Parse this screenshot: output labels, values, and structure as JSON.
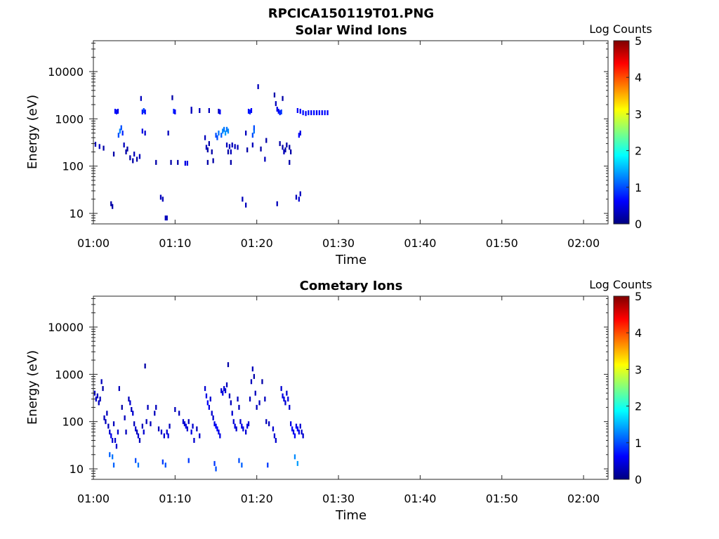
{
  "figure_title": "RPCICA150119T01.PNG",
  "colorscale": [
    "#00007f",
    "#0000ff",
    "#0080ff",
    "#00ffff",
    "#80ff80",
    "#ffff00",
    "#ff8000",
    "#ff0000",
    "#7f0000"
  ],
  "chart_data": [
    {
      "type": "heatmap",
      "title": "Solar Wind Ions",
      "xlabel": "Time",
      "ylabel": "Energy (eV)",
      "xlim": [
        "01:00",
        "02:03"
      ],
      "x_ticks": [
        "01:00",
        "01:10",
        "01:20",
        "01:30",
        "01:40",
        "01:50",
        "02:00"
      ],
      "y_scale": "log",
      "ylim": [
        6,
        45000
      ],
      "y_ticks": [
        "10",
        "100",
        "1000",
        "10000"
      ],
      "grid": false,
      "colorbar": {
        "label": "Log Counts",
        "range": [
          0,
          5
        ],
        "ticks": [
          "0",
          "1",
          "2",
          "3",
          "4",
          "5"
        ]
      },
      "points": [
        [
          "01:00:15",
          290,
          0.3
        ],
        [
          "01:00:45",
          260,
          0.3
        ],
        [
          "01:01:15",
          240,
          0.2
        ],
        [
          "01:02:10",
          16,
          0.2
        ],
        [
          "01:02:20",
          14,
          0.2
        ],
        [
          "01:02:30",
          180,
          0.2
        ],
        [
          "01:02:40",
          1450,
          0.6
        ],
        [
          "01:02:50",
          1400,
          0.7
        ],
        [
          "01:03:00",
          1450,
          0.5
        ],
        [
          "01:03:05",
          450,
          1.0
        ],
        [
          "01:03:15",
          550,
          1.3
        ],
        [
          "01:03:25",
          650,
          1.0
        ],
        [
          "01:03:35",
          500,
          0.8
        ],
        [
          "01:03:45",
          280,
          0.3
        ],
        [
          "01:04:00",
          200,
          0.2
        ],
        [
          "01:04:10",
          230,
          0.2
        ],
        [
          "01:04:30",
          150,
          0.2
        ],
        [
          "01:04:50",
          130,
          0.2
        ],
        [
          "01:05:00",
          180,
          0.3
        ],
        [
          "01:05:20",
          140,
          0.2
        ],
        [
          "01:05:40",
          160,
          0.3
        ],
        [
          "01:05:50",
          2700,
          0.3
        ],
        [
          "01:06:00",
          1400,
          0.7
        ],
        [
          "01:06:10",
          1500,
          1.0
        ],
        [
          "01:06:20",
          1400,
          0.6
        ],
        [
          "01:06:00",
          550,
          0.5
        ],
        [
          "01:06:20",
          500,
          0.4
        ],
        [
          "01:07:40",
          120,
          0.2
        ],
        [
          "01:08:15",
          22,
          0.3
        ],
        [
          "01:08:30",
          20,
          0.3
        ],
        [
          "01:08:50",
          8,
          0.3
        ],
        [
          "01:09:00",
          8,
          0.3
        ],
        [
          "01:09:10",
          500,
          0.3
        ],
        [
          "01:09:30",
          120,
          0.2
        ],
        [
          "01:09:40",
          2800,
          0.2
        ],
        [
          "01:09:50",
          1450,
          0.8
        ],
        [
          "01:10:00",
          1400,
          0.6
        ],
        [
          "01:10:20",
          120,
          0.2
        ],
        [
          "01:11:15",
          115,
          0.5
        ],
        [
          "01:11:30",
          115,
          0.5
        ],
        [
          "01:12:00",
          1450,
          0.3
        ],
        [
          "01:12:00",
          1600,
          0.3
        ],
        [
          "01:13:00",
          1500,
          0.3
        ],
        [
          "01:14:10",
          1500,
          0.3
        ],
        [
          "01:13:40",
          400,
          0.3
        ],
        [
          "01:13:50",
          250,
          0.3
        ],
        [
          "01:14:00",
          220,
          0.2
        ],
        [
          "01:14:00",
          120,
          0.2
        ],
        [
          "01:14:10",
          300,
          0.2
        ],
        [
          "01:14:30",
          200,
          0.2
        ],
        [
          "01:14:40",
          130,
          0.2
        ],
        [
          "01:15:00",
          450,
          1.0
        ],
        [
          "01:15:10",
          400,
          1.0
        ],
        [
          "01:15:20",
          500,
          1.2
        ],
        [
          "01:15:40",
          450,
          1.1
        ],
        [
          "01:15:50",
          550,
          1.3
        ],
        [
          "01:16:00",
          600,
          1.2
        ],
        [
          "01:16:10",
          500,
          1.4
        ],
        [
          "01:16:20",
          600,
          1.2
        ],
        [
          "01:16:30",
          550,
          1.3
        ],
        [
          "01:15:20",
          1450,
          0.3
        ],
        [
          "01:15:30",
          1400,
          0.6
        ],
        [
          "01:16:20",
          280,
          0.3
        ],
        [
          "01:16:40",
          260,
          0.3
        ],
        [
          "01:16:50",
          200,
          0.3
        ],
        [
          "01:17:00",
          280,
          0.3
        ],
        [
          "01:17:20",
          260,
          0.3
        ],
        [
          "01:17:40",
          250,
          0.3
        ],
        [
          "01:16:30",
          200,
          0.2
        ],
        [
          "01:16:50",
          120,
          0.2
        ],
        [
          "01:18:15",
          20,
          0.3
        ],
        [
          "01:18:40",
          15,
          0.3
        ],
        [
          "01:18:40",
          500,
          0.3
        ],
        [
          "01:18:50",
          220,
          0.2
        ],
        [
          "01:19:00",
          1450,
          0.7
        ],
        [
          "01:19:10",
          1400,
          0.8
        ],
        [
          "01:19:20",
          1500,
          0.6
        ],
        [
          "01:19:30",
          450,
          1.0
        ],
        [
          "01:19:40",
          550,
          1.2
        ],
        [
          "01:19:40",
          650,
          1.0
        ],
        [
          "01:19:30",
          280,
          0.3
        ],
        [
          "01:20:10",
          4800,
          0.3
        ],
        [
          "01:20:30",
          230,
          0.2
        ],
        [
          "01:21:00",
          140,
          0.3
        ],
        [
          "01:21:10",
          350,
          0.2
        ],
        [
          "01:22:10",
          3200,
          0.2
        ],
        [
          "01:22:20",
          2100,
          0.3
        ],
        [
          "01:22:30",
          1600,
          0.5
        ],
        [
          "01:22:40",
          1450,
          0.6
        ],
        [
          "01:22:50",
          1350,
          0.8
        ],
        [
          "01:23:00",
          1400,
          0.9
        ],
        [
          "01:23:10",
          2700,
          0.2
        ],
        [
          "01:22:30",
          16,
          0.3
        ],
        [
          "01:22:50",
          300,
          0.2
        ],
        [
          "01:23:10",
          250,
          0.2
        ],
        [
          "01:23:20",
          200,
          0.3
        ],
        [
          "01:23:30",
          220,
          0.2
        ],
        [
          "01:23:40",
          280,
          0.2
        ],
        [
          "01:24:00",
          250,
          0.2
        ],
        [
          "01:24:10",
          200,
          0.2
        ],
        [
          "01:24:00",
          120,
          0.2
        ],
        [
          "01:24:50",
          22,
          0.3
        ],
        [
          "01:25:10",
          20,
          0.4
        ],
        [
          "01:25:20",
          26,
          0.3
        ],
        [
          "01:25:00",
          1500,
          0.6
        ],
        [
          "01:25:10",
          450,
          0.6
        ],
        [
          "01:25:20",
          500,
          0.5
        ],
        [
          "01:25:20",
          1450,
          0.6
        ],
        [
          "01:25:40",
          1350,
          0.7
        ],
        [
          "01:26:00",
          1300,
          0.6
        ],
        [
          "01:26:20",
          1350,
          0.7
        ],
        [
          "01:26:40",
          1350,
          0.6
        ],
        [
          "01:27:00",
          1350,
          0.7
        ],
        [
          "01:27:20",
          1350,
          0.6
        ],
        [
          "01:27:40",
          1350,
          0.7
        ],
        [
          "01:28:00",
          1350,
          0.6
        ],
        [
          "01:28:20",
          1350,
          0.7
        ],
        [
          "01:28:40",
          1350,
          0.6
        ]
      ]
    },
    {
      "type": "heatmap",
      "title": "Cometary Ions",
      "xlabel": "Time",
      "ylabel": "Energy (eV)",
      "xlim": [
        "01:00",
        "02:03"
      ],
      "x_ticks": [
        "01:00",
        "01:10",
        "01:20",
        "01:30",
        "01:40",
        "01:50",
        "02:00"
      ],
      "y_scale": "log",
      "ylim": [
        6,
        45000
      ],
      "y_ticks": [
        "10",
        "100",
        "1000",
        "10000"
      ],
      "grid": false,
      "colorbar": {
        "label": "Log Counts",
        "range": [
          0,
          5
        ],
        "ticks": [
          "0",
          "1",
          "2",
          "3",
          "4",
          "5"
        ]
      },
      "points": [
        [
          "01:00:10",
          400,
          0.4
        ],
        [
          "01:00:20",
          300,
          0.4
        ],
        [
          "01:00:30",
          350,
          0.3
        ],
        [
          "01:00:40",
          250,
          0.3
        ],
        [
          "01:00:50",
          300,
          0.3
        ],
        [
          "01:01:00",
          700,
          0.3
        ],
        [
          "01:01:10",
          500,
          0.2
        ],
        [
          "01:01:20",
          120,
          0.3
        ],
        [
          "01:01:30",
          100,
          0.3
        ],
        [
          "01:01:40",
          150,
          0.3
        ],
        [
          "01:01:50",
          80,
          0.3
        ],
        [
          "01:02:00",
          60,
          0.4
        ],
        [
          "01:02:10",
          50,
          0.5
        ],
        [
          "01:02:20",
          40,
          0.4
        ],
        [
          "01:02:30",
          90,
          0.3
        ],
        [
          "01:02:40",
          40,
          0.4
        ],
        [
          "01:02:50",
          30,
          0.4
        ],
        [
          "01:03:00",
          60,
          0.4
        ],
        [
          "01:03:10",
          500,
          0.3
        ],
        [
          "01:03:30",
          200,
          0.2
        ],
        [
          "01:03:50",
          120,
          0.3
        ],
        [
          "01:04:00",
          60,
          0.3
        ],
        [
          "01:04:20",
          300,
          0.3
        ],
        [
          "01:04:30",
          250,
          0.4
        ],
        [
          "01:04:40",
          180,
          0.3
        ],
        [
          "01:04:50",
          150,
          0.4
        ],
        [
          "01:05:00",
          90,
          0.3
        ],
        [
          "01:05:10",
          70,
          0.4
        ],
        [
          "01:05:20",
          60,
          0.3
        ],
        [
          "01:05:30",
          50,
          0.4
        ],
        [
          "01:05:40",
          40,
          0.3
        ],
        [
          "01:06:00",
          80,
          0.3
        ],
        [
          "01:06:10",
          60,
          0.4
        ],
        [
          "01:06:20",
          1500,
          0.2
        ],
        [
          "01:06:30",
          100,
          0.3
        ],
        [
          "01:06:40",
          200,
          0.3
        ],
        [
          "01:07:00",
          90,
          0.3
        ],
        [
          "01:07:30",
          150,
          0.3
        ],
        [
          "01:07:40",
          200,
          0.3
        ],
        [
          "01:08:00",
          70,
          0.3
        ],
        [
          "01:08:20",
          60,
          0.4
        ],
        [
          "01:08:40",
          50,
          0.4
        ],
        [
          "01:09:00",
          60,
          0.4
        ],
        [
          "01:09:10",
          50,
          0.5
        ],
        [
          "01:09:20",
          80,
          0.3
        ],
        [
          "01:10:00",
          180,
          0.3
        ],
        [
          "01:10:30",
          150,
          0.3
        ],
        [
          "01:11:00",
          100,
          0.4
        ],
        [
          "01:11:10",
          90,
          0.4
        ],
        [
          "01:11:20",
          80,
          0.5
        ],
        [
          "01:11:30",
          70,
          0.4
        ],
        [
          "01:11:40",
          100,
          0.3
        ],
        [
          "01:12:00",
          60,
          0.5
        ],
        [
          "01:12:10",
          80,
          0.4
        ],
        [
          "01:12:20",
          40,
          0.4
        ],
        [
          "01:12:40",
          70,
          0.3
        ],
        [
          "01:13:00",
          50,
          0.4
        ],
        [
          "01:13:40",
          500,
          0.4
        ],
        [
          "01:13:50",
          350,
          0.5
        ],
        [
          "01:14:00",
          250,
          0.6
        ],
        [
          "01:14:10",
          200,
          0.5
        ],
        [
          "01:14:20",
          300,
          0.4
        ],
        [
          "01:14:30",
          150,
          0.4
        ],
        [
          "01:14:40",
          120,
          0.4
        ],
        [
          "01:14:50",
          90,
          0.5
        ],
        [
          "01:15:00",
          80,
          0.6
        ],
        [
          "01:15:10",
          70,
          0.6
        ],
        [
          "01:15:20",
          60,
          0.5
        ],
        [
          "01:15:30",
          50,
          0.5
        ],
        [
          "01:15:40",
          450,
          0.4
        ],
        [
          "01:15:50",
          400,
          0.5
        ],
        [
          "01:16:00",
          500,
          0.4
        ],
        [
          "01:16:10",
          450,
          0.4
        ],
        [
          "01:16:20",
          600,
          0.3
        ],
        [
          "01:16:30",
          1600,
          0.2
        ],
        [
          "01:16:40",
          350,
          0.3
        ],
        [
          "01:16:50",
          250,
          0.3
        ],
        [
          "01:17:00",
          150,
          0.4
        ],
        [
          "01:17:10",
          100,
          0.4
        ],
        [
          "01:17:20",
          80,
          0.5
        ],
        [
          "01:17:30",
          70,
          0.4
        ],
        [
          "01:17:40",
          300,
          0.3
        ],
        [
          "01:17:50",
          200,
          0.3
        ],
        [
          "01:18:00",
          100,
          0.4
        ],
        [
          "01:18:10",
          80,
          0.5
        ],
        [
          "01:18:20",
          70,
          0.5
        ],
        [
          "01:18:40",
          60,
          0.4
        ],
        [
          "01:18:50",
          80,
          0.5
        ],
        [
          "01:19:00",
          90,
          0.4
        ],
        [
          "01:19:10",
          300,
          0.3
        ],
        [
          "01:19:20",
          700,
          0.3
        ],
        [
          "01:19:30",
          1300,
          0.3
        ],
        [
          "01:19:40",
          900,
          0.2
        ],
        [
          "01:19:50",
          400,
          0.3
        ],
        [
          "01:20:00",
          200,
          0.3
        ],
        [
          "01:20:20",
          250,
          0.3
        ],
        [
          "01:20:40",
          700,
          0.2
        ],
        [
          "01:21:00",
          300,
          0.3
        ],
        [
          "01:21:10",
          100,
          0.3
        ],
        [
          "01:21:30",
          90,
          0.3
        ],
        [
          "01:22:00",
          70,
          0.4
        ],
        [
          "01:22:10",
          50,
          0.4
        ],
        [
          "01:22:20",
          40,
          0.4
        ],
        [
          "01:23:00",
          500,
          0.4
        ],
        [
          "01:23:10",
          350,
          0.5
        ],
        [
          "01:23:20",
          300,
          0.5
        ],
        [
          "01:23:30",
          250,
          0.4
        ],
        [
          "01:23:40",
          400,
          0.4
        ],
        [
          "01:23:50",
          300,
          0.5
        ],
        [
          "01:24:00",
          200,
          0.4
        ],
        [
          "01:24:10",
          90,
          0.5
        ],
        [
          "01:24:20",
          70,
          0.6
        ],
        [
          "01:24:30",
          60,
          0.5
        ],
        [
          "01:24:40",
          50,
          0.6
        ],
        [
          "01:24:50",
          80,
          0.5
        ],
        [
          "01:25:00",
          70,
          0.6
        ],
        [
          "01:25:10",
          60,
          0.5
        ],
        [
          "01:25:20",
          80,
          0.4
        ],
        [
          "01:25:30",
          60,
          0.4
        ],
        [
          "01:25:40",
          50,
          0.4
        ],
        [
          "01:02:00",
          20,
          1.1
        ],
        [
          "01:02:20",
          18,
          1.2
        ],
        [
          "01:02:30",
          12,
          1.1
        ],
        [
          "01:05:10",
          15,
          1.0
        ],
        [
          "01:05:30",
          12,
          1.2
        ],
        [
          "01:08:30",
          14,
          0.9
        ],
        [
          "01:08:50",
          12,
          1.0
        ],
        [
          "01:11:40",
          15,
          0.9
        ],
        [
          "01:14:50",
          13,
          0.9
        ],
        [
          "01:15:00",
          10,
          1.0
        ],
        [
          "01:17:50",
          15,
          1.0
        ],
        [
          "01:18:10",
          12,
          1.1
        ],
        [
          "01:21:20",
          12,
          0.9
        ],
        [
          "01:24:40",
          18,
          1.3
        ],
        [
          "01:25:00",
          13,
          1.4
        ]
      ]
    }
  ]
}
